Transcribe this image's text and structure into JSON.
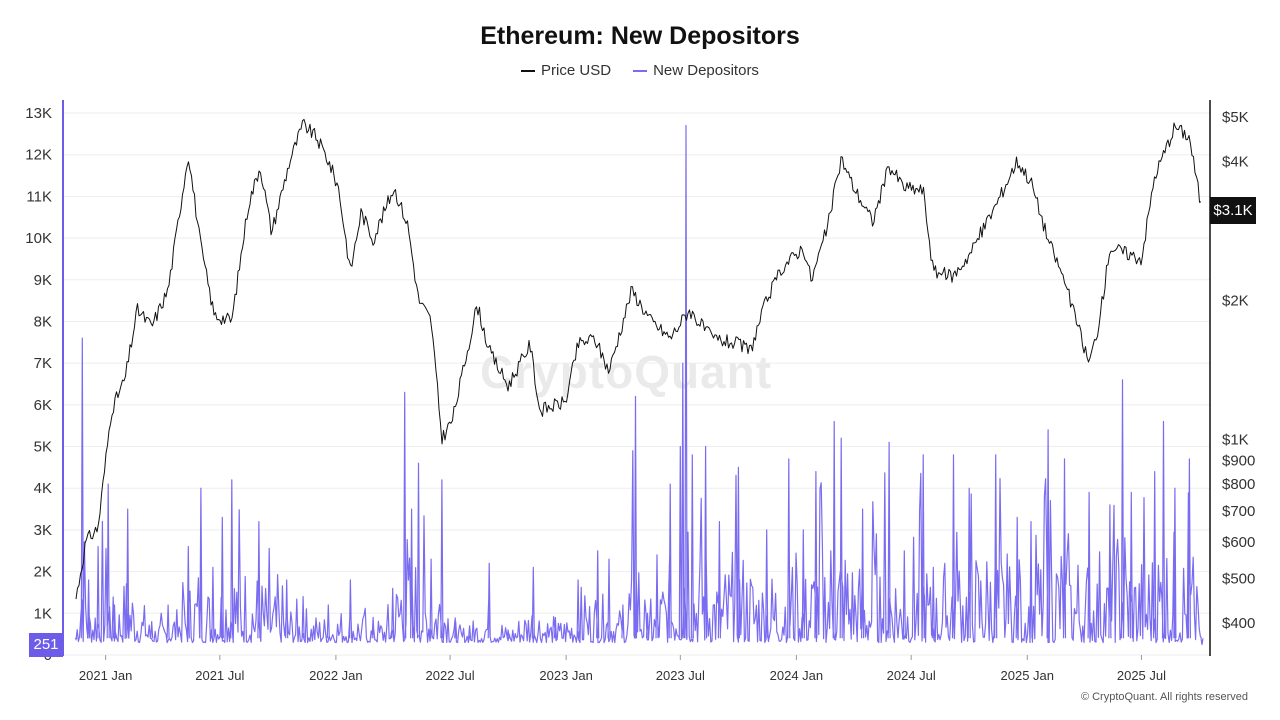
{
  "chart_data": {
    "type": "line",
    "title": "Ethereum: New Depositors",
    "legend": {
      "placement": "top-center"
    },
    "x_ticks": [
      "2021 Jan",
      "2021 Jul",
      "2022 Jan",
      "2022 Jul",
      "2023 Jan",
      "2023 Jul",
      "2024 Jan",
      "2024 Jul",
      "2025 Jan",
      "2025 Jul"
    ],
    "x_range": [
      "2020-11-15",
      "2025-10-05"
    ],
    "left_axis": {
      "ticks": [
        "0",
        "1K",
        "2K",
        "3K",
        "4K",
        "5K",
        "6K",
        "7K",
        "8K",
        "9K",
        "10K",
        "11K",
        "12K",
        "13K"
      ],
      "tick_values": [
        0,
        1000,
        2000,
        3000,
        4000,
        5000,
        6000,
        7000,
        8000,
        9000,
        10000,
        11000,
        12000,
        13000
      ],
      "range": [
        0,
        13300
      ],
      "current_value_label": "251"
    },
    "right_axis": {
      "scale": "log",
      "ticks": [
        "$400",
        "$500",
        "$600",
        "$700",
        "$800",
        "$900",
        "$1K",
        "$2K",
        "$4K",
        "$5K"
      ],
      "tick_values": [
        400,
        500,
        600,
        700,
        800,
        900,
        1000,
        2000,
        4000,
        5000
      ],
      "range": [
        330,
        5500
      ],
      "current_value_label": "$3.1K"
    },
    "grid": "horizontal",
    "series": [
      {
        "name": "Price USD",
        "color": "#111111",
        "axis": "right",
        "points": [
          [
            "2020-11-15",
            450
          ],
          [
            "2020-12-01",
            600
          ],
          [
            "2020-12-20",
            640
          ],
          [
            "2021-01-10",
            1150
          ],
          [
            "2021-02-01",
            1350
          ],
          [
            "2021-02-20",
            1900
          ],
          [
            "2021-03-15",
            1750
          ],
          [
            "2021-04-10",
            2100
          ],
          [
            "2021-05-12",
            4150
          ],
          [
            "2021-06-01",
            2600
          ],
          [
            "2021-06-22",
            1850
          ],
          [
            "2021-07-20",
            1800
          ],
          [
            "2021-08-15",
            3200
          ],
          [
            "2021-09-03",
            3900
          ],
          [
            "2021-09-21",
            2800
          ],
          [
            "2021-10-20",
            4000
          ],
          [
            "2021-11-10",
            4800
          ],
          [
            "2021-12-01",
            4500
          ],
          [
            "2021-12-20",
            4000
          ],
          [
            "2022-01-05",
            3500
          ],
          [
            "2022-01-24",
            2300
          ],
          [
            "2022-02-10",
            3100
          ],
          [
            "2022-03-01",
            2700
          ],
          [
            "2022-04-03",
            3500
          ],
          [
            "2022-04-25",
            2900
          ],
          [
            "2022-05-12",
            2000
          ],
          [
            "2022-06-01",
            1800
          ],
          [
            "2022-06-18",
            1000
          ],
          [
            "2022-07-05",
            1100
          ],
          [
            "2022-08-13",
            1950
          ],
          [
            "2022-09-01",
            1550
          ],
          [
            "2022-10-01",
            1300
          ],
          [
            "2022-11-05",
            1600
          ],
          [
            "2022-11-20",
            1150
          ],
          [
            "2022-12-31",
            1200
          ],
          [
            "2023-01-20",
            1600
          ],
          [
            "2023-02-15",
            1650
          ],
          [
            "2023-03-10",
            1400
          ],
          [
            "2023-04-15",
            2100
          ],
          [
            "2023-05-15",
            1800
          ],
          [
            "2023-06-15",
            1650
          ],
          [
            "2023-07-15",
            1900
          ],
          [
            "2023-08-20",
            1650
          ],
          [
            "2023-10-01",
            1600
          ],
          [
            "2023-10-20",
            1550
          ],
          [
            "2023-11-15",
            2000
          ],
          [
            "2023-12-10",
            2350
          ],
          [
            "2024-01-12",
            2600
          ],
          [
            "2024-01-25",
            2200
          ],
          [
            "2024-02-20",
            2900
          ],
          [
            "2024-03-12",
            4050
          ],
          [
            "2024-04-01",
            3500
          ],
          [
            "2024-05-01",
            2950
          ],
          [
            "2024-05-27",
            3900
          ],
          [
            "2024-06-20",
            3500
          ],
          [
            "2024-07-20",
            3450
          ],
          [
            "2024-08-05",
            2300
          ],
          [
            "2024-09-06",
            2250
          ],
          [
            "2024-10-01",
            2500
          ],
          [
            "2024-11-12",
            3200
          ],
          [
            "2024-12-16",
            4000
          ],
          [
            "2025-01-07",
            3600
          ],
          [
            "2025-02-03",
            2700
          ],
          [
            "2025-03-01",
            2200
          ],
          [
            "2025-04-09",
            1450
          ],
          [
            "2025-04-25",
            1780
          ],
          [
            "2025-05-12",
            2600
          ],
          [
            "2025-06-15",
            2500
          ],
          [
            "2025-07-01",
            2450
          ],
          [
            "2025-07-22",
            3700
          ],
          [
            "2025-08-23",
            4750
          ],
          [
            "2025-09-15",
            4500
          ],
          [
            "2025-10-05",
            3100
          ]
        ]
      },
      {
        "name": "New Depositors",
        "color": "#7a6cf0",
        "axis": "left",
        "points": [
          [
            "2020-11-15",
            400
          ],
          [
            "2020-11-25",
            7600
          ],
          [
            "2020-12-05",
            1800
          ],
          [
            "2020-12-20",
            2600
          ],
          [
            "2021-01-05",
            4100
          ],
          [
            "2021-01-15",
            1200
          ],
          [
            "2021-02-05",
            3500
          ],
          [
            "2021-03-15",
            800
          ],
          [
            "2021-04-10",
            1200
          ],
          [
            "2021-05-12",
            2600
          ],
          [
            "2021-06-01",
            4000
          ],
          [
            "2021-06-20",
            2100
          ],
          [
            "2021-07-05",
            3300
          ],
          [
            "2021-07-20",
            4200
          ],
          [
            "2021-09-01",
            3200
          ],
          [
            "2021-10-15",
            1800
          ],
          [
            "2021-11-10",
            1400
          ],
          [
            "2021-12-20",
            1200
          ],
          [
            "2022-01-24",
            1800
          ],
          [
            "2022-03-01",
            900
          ],
          [
            "2022-04-01",
            1600
          ],
          [
            "2022-04-20",
            6300
          ],
          [
            "2022-05-01",
            3500
          ],
          [
            "2022-05-12",
            4600
          ],
          [
            "2022-06-01",
            2300
          ],
          [
            "2022-06-18",
            4200
          ],
          [
            "2022-07-10",
            800
          ],
          [
            "2022-08-01",
            700
          ],
          [
            "2022-09-01",
            2200
          ],
          [
            "2022-10-01",
            600
          ],
          [
            "2022-11-10",
            2100
          ],
          [
            "2022-12-15",
            900
          ],
          [
            "2023-01-20",
            1800
          ],
          [
            "2023-02-20",
            2500
          ],
          [
            "2023-03-10",
            2300
          ],
          [
            "2023-04-01",
            1200
          ],
          [
            "2023-04-21",
            6200
          ],
          [
            "2023-05-10",
            1000
          ],
          [
            "2023-05-25",
            2400
          ],
          [
            "2023-06-15",
            4100
          ],
          [
            "2023-07-01",
            5000
          ],
          [
            "2023-07-05",
            7000
          ],
          [
            "2023-07-10",
            12700
          ],
          [
            "2023-07-20",
            4800
          ],
          [
            "2023-08-10",
            5000
          ],
          [
            "2023-09-01",
            3200
          ],
          [
            "2023-10-01",
            4500
          ],
          [
            "2023-11-15",
            3000
          ],
          [
            "2023-12-20",
            4700
          ],
          [
            "2024-01-12",
            3000
          ],
          [
            "2024-02-01",
            4400
          ],
          [
            "2024-03-01",
            5600
          ],
          [
            "2024-03-12",
            5200
          ],
          [
            "2024-04-15",
            3500
          ],
          [
            "2024-05-27",
            5100
          ],
          [
            "2024-06-20",
            2500
          ],
          [
            "2024-07-20",
            4800
          ],
          [
            "2024-08-05",
            2100
          ],
          [
            "2024-09-06",
            4800
          ],
          [
            "2024-10-01",
            4000
          ],
          [
            "2024-11-12",
            4800
          ],
          [
            "2024-12-16",
            3300
          ],
          [
            "2025-01-07",
            3200
          ],
          [
            "2025-02-03",
            5400
          ],
          [
            "2025-03-01",
            4700
          ],
          [
            "2025-04-09",
            3900
          ],
          [
            "2025-05-12",
            3600
          ],
          [
            "2025-06-01",
            6600
          ],
          [
            "2025-06-15",
            3900
          ],
          [
            "2025-07-22",
            4400
          ],
          [
            "2025-08-05",
            5600
          ],
          [
            "2025-08-23",
            4000
          ],
          [
            "2025-09-15",
            4700
          ],
          [
            "2025-10-05",
            251
          ]
        ]
      }
    ]
  },
  "footer": {
    "credit": "© CryptoQuant. All rights reserved",
    "watermark": "CryptoQuant"
  }
}
